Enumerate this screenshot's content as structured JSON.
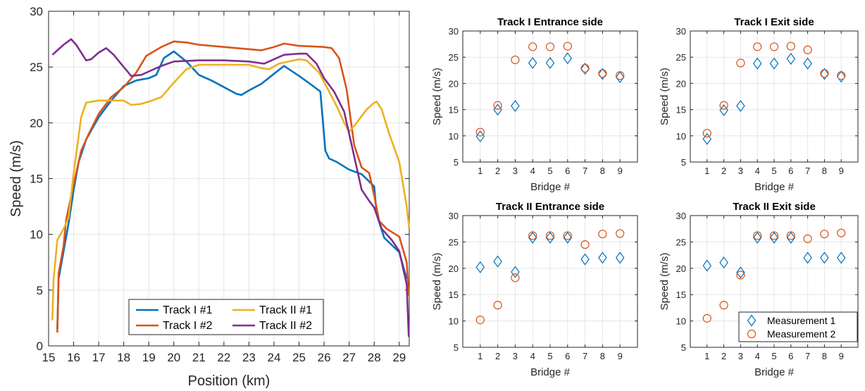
{
  "colors": {
    "track1_m1": "#0072BD",
    "track1_m2": "#D95319",
    "track2_m1": "#EDB120",
    "track2_m2": "#7E2F8E",
    "meas1": "#0072BD",
    "meas2": "#D95319"
  },
  "chart_data": [
    {
      "type": "line",
      "title": "",
      "xlabel": "Position (km)",
      "ylabel": "Speed (m/s)",
      "xlim": [
        15,
        29.4
      ],
      "ylim": [
        0,
        30
      ],
      "xticks": [
        "15",
        "16",
        "17",
        "18",
        "19",
        "20",
        "21",
        "22",
        "23",
        "24",
        "25",
        "26",
        "27",
        "28",
        "29"
      ],
      "yticks": [
        "0",
        "5",
        "10",
        "15",
        "20",
        "25",
        "30"
      ],
      "grid": true,
      "legend_position": "bottom-center",
      "series": [
        {
          "name": "Track I #1",
          "color_key": "track1_m1",
          "points": [
            [
              15.35,
              1.5
            ],
            [
              15.4,
              6.0
            ],
            [
              15.6,
              8.5
            ],
            [
              15.8,
              11.0
            ],
            [
              16.0,
              14.0
            ],
            [
              16.2,
              16.5
            ],
            [
              16.5,
              18.5
            ],
            [
              17.0,
              20.5
            ],
            [
              17.5,
              22.0
            ],
            [
              18.0,
              23.3
            ],
            [
              18.5,
              23.8
            ],
            [
              19.0,
              24.0
            ],
            [
              19.3,
              24.3
            ],
            [
              19.6,
              25.8
            ],
            [
              20.0,
              26.4
            ],
            [
              20.5,
              25.5
            ],
            [
              21.0,
              24.3
            ],
            [
              21.5,
              23.8
            ],
            [
              22.0,
              23.2
            ],
            [
              22.5,
              22.6
            ],
            [
              22.7,
              22.5
            ],
            [
              23.0,
              22.9
            ],
            [
              23.5,
              23.5
            ],
            [
              24.0,
              24.4
            ],
            [
              24.4,
              25.1
            ],
            [
              25.0,
              24.2
            ],
            [
              25.5,
              23.4
            ],
            [
              25.85,
              22.8
            ],
            [
              26.05,
              17.5
            ],
            [
              26.2,
              16.8
            ],
            [
              26.5,
              16.5
            ],
            [
              27.0,
              15.8
            ],
            [
              27.5,
              15.4
            ],
            [
              28.0,
              14.3
            ],
            [
              28.1,
              11.8
            ],
            [
              28.4,
              9.7
            ],
            [
              29.0,
              8.4
            ],
            [
              29.3,
              6.0
            ]
          ]
        },
        {
          "name": "Track I #2",
          "color_key": "track1_m2",
          "points": [
            [
              15.35,
              1.2
            ],
            [
              15.4,
              6.5
            ],
            [
              15.6,
              9.0
            ],
            [
              15.7,
              11.3
            ],
            [
              16.0,
              14.5
            ],
            [
              16.3,
              17.5
            ],
            [
              16.6,
              19.0
            ],
            [
              17.0,
              20.8
            ],
            [
              17.5,
              22.3
            ],
            [
              18.0,
              23.2
            ],
            [
              18.5,
              24.5
            ],
            [
              18.9,
              26.0
            ],
            [
              19.5,
              26.8
            ],
            [
              20.0,
              27.3
            ],
            [
              20.5,
              27.2
            ],
            [
              21.0,
              27.0
            ],
            [
              22.0,
              26.8
            ],
            [
              23.0,
              26.6
            ],
            [
              23.5,
              26.5
            ],
            [
              24.0,
              26.8
            ],
            [
              24.4,
              27.1
            ],
            [
              25.0,
              26.9
            ],
            [
              26.0,
              26.8
            ],
            [
              26.3,
              26.7
            ],
            [
              26.6,
              25.8
            ],
            [
              26.9,
              23.0
            ],
            [
              27.2,
              18.0
            ],
            [
              27.5,
              16.0
            ],
            [
              27.8,
              15.5
            ],
            [
              28.0,
              13.5
            ],
            [
              28.2,
              11.2
            ],
            [
              28.5,
              10.5
            ],
            [
              29.0,
              9.8
            ],
            [
              29.3,
              7.5
            ],
            [
              29.38,
              4.5
            ]
          ]
        },
        {
          "name": "Track II #1",
          "color_key": "track2_m1",
          "points": [
            [
              15.15,
              2.3
            ],
            [
              15.2,
              6.0
            ],
            [
              15.35,
              9.5
            ],
            [
              15.6,
              10.5
            ],
            [
              15.8,
              11.5
            ],
            [
              16.0,
              15.5
            ],
            [
              16.3,
              20.5
            ],
            [
              16.5,
              21.8
            ],
            [
              17.0,
              22.0
            ],
            [
              17.5,
              22.0
            ],
            [
              18.0,
              22.0
            ],
            [
              18.3,
              21.6
            ],
            [
              18.7,
              21.7
            ],
            [
              19.0,
              21.9
            ],
            [
              19.5,
              22.3
            ],
            [
              20.0,
              23.6
            ],
            [
              20.5,
              24.8
            ],
            [
              21.0,
              25.2
            ],
            [
              22.0,
              25.2
            ],
            [
              23.0,
              25.2
            ],
            [
              23.5,
              24.9
            ],
            [
              23.8,
              24.8
            ],
            [
              24.2,
              25.3
            ],
            [
              25.0,
              25.7
            ],
            [
              25.3,
              25.6
            ],
            [
              25.8,
              24.5
            ],
            [
              26.2,
              22.8
            ],
            [
              26.5,
              21.5
            ],
            [
              26.8,
              20.0
            ],
            [
              27.0,
              19.2
            ],
            [
              27.3,
              20.0
            ],
            [
              27.7,
              21.2
            ],
            [
              28.0,
              21.8
            ],
            [
              28.1,
              21.9
            ],
            [
              28.3,
              21.2
            ],
            [
              28.6,
              19.0
            ],
            [
              29.0,
              16.5
            ],
            [
              29.3,
              12.5
            ],
            [
              29.4,
              10.5
            ]
          ]
        },
        {
          "name": "Track II #2",
          "color_key": "track2_m2",
          "points": [
            [
              15.15,
              26.1
            ],
            [
              15.3,
              26.4
            ],
            [
              15.6,
              27.0
            ],
            [
              15.9,
              27.5
            ],
            [
              16.1,
              27.0
            ],
            [
              16.3,
              26.3
            ],
            [
              16.5,
              25.6
            ],
            [
              16.7,
              25.7
            ],
            [
              17.0,
              26.3
            ],
            [
              17.3,
              26.7
            ],
            [
              17.6,
              26.1
            ],
            [
              18.0,
              25.0
            ],
            [
              18.3,
              24.2
            ],
            [
              18.7,
              24.3
            ],
            [
              19.0,
              24.6
            ],
            [
              19.5,
              25.1
            ],
            [
              20.0,
              25.5
            ],
            [
              21.0,
              25.6
            ],
            [
              22.0,
              25.6
            ],
            [
              23.0,
              25.5
            ],
            [
              23.6,
              25.3
            ],
            [
              24.0,
              25.7
            ],
            [
              24.4,
              26.1
            ],
            [
              25.0,
              26.2
            ],
            [
              25.3,
              26.2
            ],
            [
              25.7,
              25.3
            ],
            [
              26.0,
              24.0
            ],
            [
              26.4,
              22.8
            ],
            [
              26.8,
              21.0
            ],
            [
              27.2,
              17.0
            ],
            [
              27.5,
              14.0
            ],
            [
              27.8,
              13.0
            ],
            [
              28.0,
              12.4
            ],
            [
              28.3,
              10.5
            ],
            [
              28.7,
              9.5
            ],
            [
              29.0,
              8.5
            ],
            [
              29.3,
              5.5
            ],
            [
              29.38,
              0.8
            ]
          ]
        }
      ]
    },
    {
      "type": "scatter",
      "title": "Track I Entrance side",
      "xlabel": "Bridge #",
      "ylabel": "Speed (m/s)",
      "xlim": [
        0,
        10
      ],
      "ylim": [
        5,
        30
      ],
      "categories": [
        "1",
        "2",
        "3",
        "4",
        "5",
        "6",
        "7",
        "8",
        "9"
      ],
      "yticks": [
        "5",
        "10",
        "15",
        "20",
        "25",
        "30"
      ],
      "grid": true,
      "series": [
        {
          "name": "Measurement 1",
          "marker": "diamond",
          "color_key": "meas1",
          "values": [
            9.9,
            15.0,
            15.7,
            23.9,
            23.9,
            24.8,
            22.8,
            21.8,
            21.2
          ]
        },
        {
          "name": "Measurement 2",
          "marker": "circle",
          "color_key": "meas2",
          "values": [
            10.7,
            15.8,
            24.5,
            27.0,
            27.0,
            27.1,
            22.9,
            21.9,
            21.5
          ]
        }
      ]
    },
    {
      "type": "scatter",
      "title": "Track I Exit side",
      "xlabel": "Bridge #",
      "ylabel": "Speed (m/s)",
      "xlim": [
        0,
        10
      ],
      "ylim": [
        5,
        30
      ],
      "categories": [
        "1",
        "2",
        "3",
        "4",
        "5",
        "6",
        "7",
        "8",
        "9"
      ],
      "yticks": [
        "5",
        "10",
        "15",
        "20",
        "25",
        "30"
      ],
      "grid": true,
      "series": [
        {
          "name": "Measurement 1",
          "marker": "diamond",
          "color_key": "meas1",
          "values": [
            9.4,
            14.9,
            15.7,
            23.8,
            23.8,
            24.7,
            23.8,
            21.8,
            21.3
          ]
        },
        {
          "name": "Measurement 2",
          "marker": "circle",
          "color_key": "meas2",
          "values": [
            10.5,
            15.8,
            23.9,
            27.0,
            27.0,
            27.1,
            26.4,
            21.9,
            21.5
          ]
        }
      ]
    },
    {
      "type": "scatter",
      "title": "Track II Entrance side",
      "xlabel": "Bridge #",
      "ylabel": "Speed (m/s)",
      "xlim": [
        0,
        10
      ],
      "ylim": [
        5,
        30
      ],
      "categories": [
        "1",
        "2",
        "3",
        "4",
        "5",
        "6",
        "7",
        "8",
        "9"
      ],
      "yticks": [
        "5",
        "10",
        "15",
        "20",
        "25",
        "30"
      ],
      "grid": true,
      "series": [
        {
          "name": "Measurement 1",
          "marker": "diamond",
          "color_key": "meas1",
          "values": [
            20.2,
            21.3,
            19.3,
            25.8,
            25.8,
            25.8,
            21.7,
            22.0,
            22.0
          ]
        },
        {
          "name": "Measurement 2",
          "marker": "circle",
          "color_key": "meas2",
          "values": [
            10.2,
            13.0,
            18.2,
            26.2,
            26.2,
            26.2,
            24.5,
            26.5,
            26.6
          ]
        }
      ]
    },
    {
      "type": "scatter",
      "title": "Track II Exit side",
      "xlabel": "Bridge #",
      "ylabel": "Speed (m/s)",
      "xlim": [
        0,
        10
      ],
      "ylim": [
        5,
        30
      ],
      "categories": [
        "1",
        "2",
        "3",
        "4",
        "5",
        "6",
        "7",
        "8",
        "9"
      ],
      "yticks": [
        "5",
        "10",
        "15",
        "20",
        "25",
        "30"
      ],
      "grid": true,
      "legend_position": "bottom-right",
      "series": [
        {
          "name": "Measurement 1",
          "marker": "diamond",
          "color_key": "meas1",
          "values": [
            20.5,
            21.1,
            19.2,
            25.8,
            25.8,
            25.8,
            22.0,
            22.0,
            22.0
          ]
        },
        {
          "name": "Measurement 2",
          "marker": "circle",
          "color_key": "meas2",
          "values": [
            10.5,
            13.0,
            18.7,
            26.2,
            26.2,
            26.2,
            25.6,
            26.5,
            26.7
          ]
        }
      ]
    }
  ]
}
